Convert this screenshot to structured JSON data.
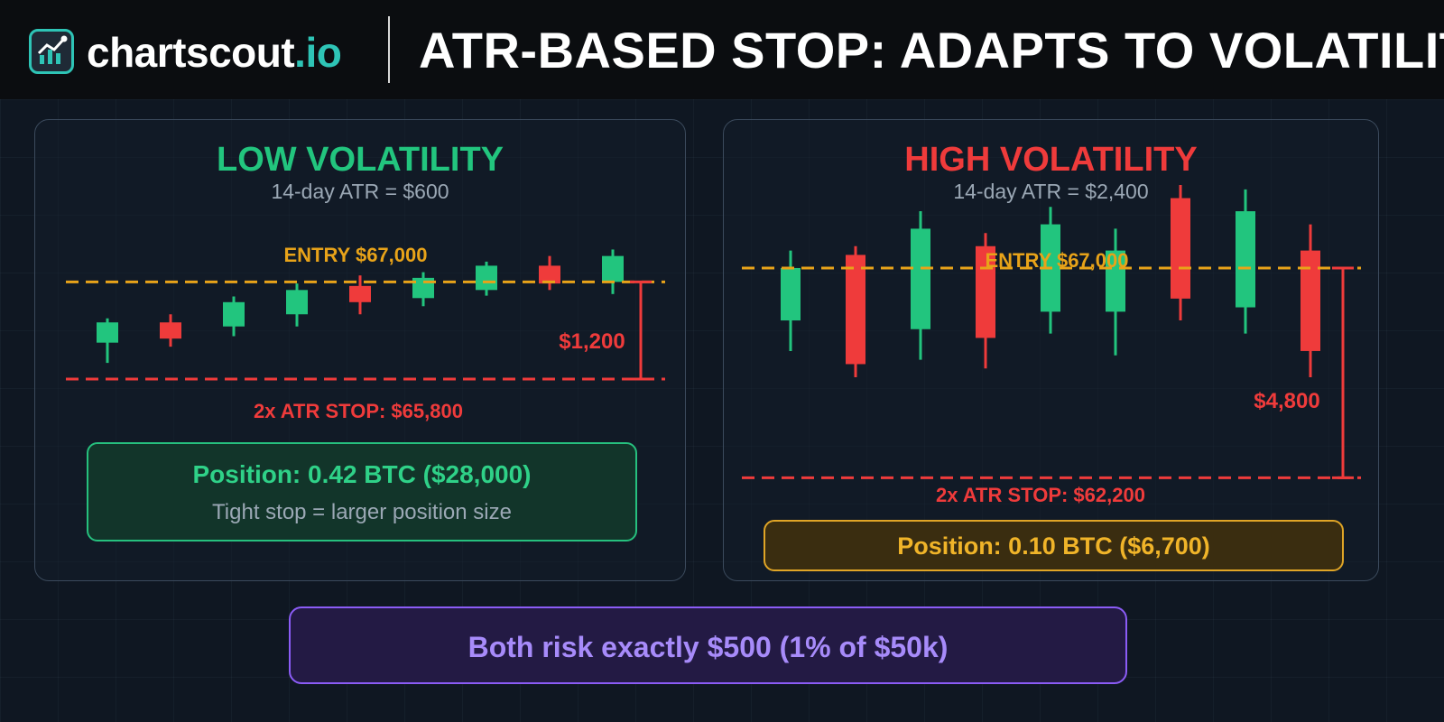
{
  "header": {
    "logo_name": "chartscout",
    "logo_tld": ".io",
    "title": "ATR-BASED STOP: ADAPTS TO VOLATILITY"
  },
  "colors": {
    "green": "#22c57e",
    "red": "#ef3b3b",
    "entry": "#e8a319",
    "stop": "#ef3b3b",
    "purple": "#a78bfa"
  },
  "panels": {
    "low": {
      "title": "LOW VOLATILITY",
      "subtitle": "14-day ATR = $600",
      "entry_label": "ENTRY $67,000",
      "stop_label": "2x ATR STOP: $65,800",
      "distance_label": "$1,200",
      "position": "Position: 0.42 BTC ($28,000)",
      "note": "Tight stop = larger position size"
    },
    "high": {
      "title": "HIGH VOLATILITY",
      "subtitle": "14-day ATR = $2,400",
      "entry_label": "ENTRY $67,000",
      "stop_label": "2x ATR STOP: $62,200",
      "distance_label": "$4,800",
      "position": "Position: 0.10 BTC ($6,700)"
    }
  },
  "summary": "Both risk exactly $500 (1% of $50k)",
  "chart_data": [
    {
      "type": "candlestick",
      "title": "LOW VOLATILITY",
      "entry": 67000,
      "stop": 65800,
      "ylim": [
        65600,
        67550
      ],
      "candles": [
        {
          "o": 66250,
          "h": 66550,
          "l": 66000,
          "c": 66500,
          "dir": "up"
        },
        {
          "o": 66500,
          "h": 66600,
          "l": 66200,
          "c": 66300,
          "dir": "down"
        },
        {
          "o": 66450,
          "h": 66820,
          "l": 66330,
          "c": 66750,
          "dir": "up"
        },
        {
          "o": 66600,
          "h": 66980,
          "l": 66450,
          "c": 66900,
          "dir": "up"
        },
        {
          "o": 66950,
          "h": 67080,
          "l": 66600,
          "c": 66750,
          "dir": "down"
        },
        {
          "o": 66800,
          "h": 67120,
          "l": 66700,
          "c": 67050,
          "dir": "up"
        },
        {
          "o": 66900,
          "h": 67250,
          "l": 66830,
          "c": 67200,
          "dir": "up"
        },
        {
          "o": 67200,
          "h": 67320,
          "l": 66900,
          "c": 66980,
          "dir": "down"
        },
        {
          "o": 67000,
          "h": 67400,
          "l": 66850,
          "c": 67320,
          "dir": "up"
        }
      ]
    },
    {
      "type": "candlestick",
      "title": "HIGH VOLATILITY",
      "entry": 67000,
      "stop": 62200,
      "ylim": [
        62000,
        68900
      ],
      "candles": [
        {
          "o": 65800,
          "h": 67400,
          "l": 65100,
          "c": 67000,
          "dir": "up"
        },
        {
          "o": 67300,
          "h": 67500,
          "l": 64500,
          "c": 64800,
          "dir": "down"
        },
        {
          "o": 65600,
          "h": 68300,
          "l": 64900,
          "c": 67900,
          "dir": "up"
        },
        {
          "o": 67500,
          "h": 67800,
          "l": 64700,
          "c": 65400,
          "dir": "down"
        },
        {
          "o": 66000,
          "h": 68400,
          "l": 65500,
          "c": 68000,
          "dir": "up"
        },
        {
          "o": 66000,
          "h": 67900,
          "l": 65000,
          "c": 67400,
          "dir": "up"
        },
        {
          "o": 68600,
          "h": 68900,
          "l": 65800,
          "c": 66300,
          "dir": "down"
        },
        {
          "o": 66100,
          "h": 68800,
          "l": 65500,
          "c": 68300,
          "dir": "up"
        },
        {
          "o": 67400,
          "h": 68000,
          "l": 64500,
          "c": 65100,
          "dir": "down"
        }
      ]
    }
  ]
}
